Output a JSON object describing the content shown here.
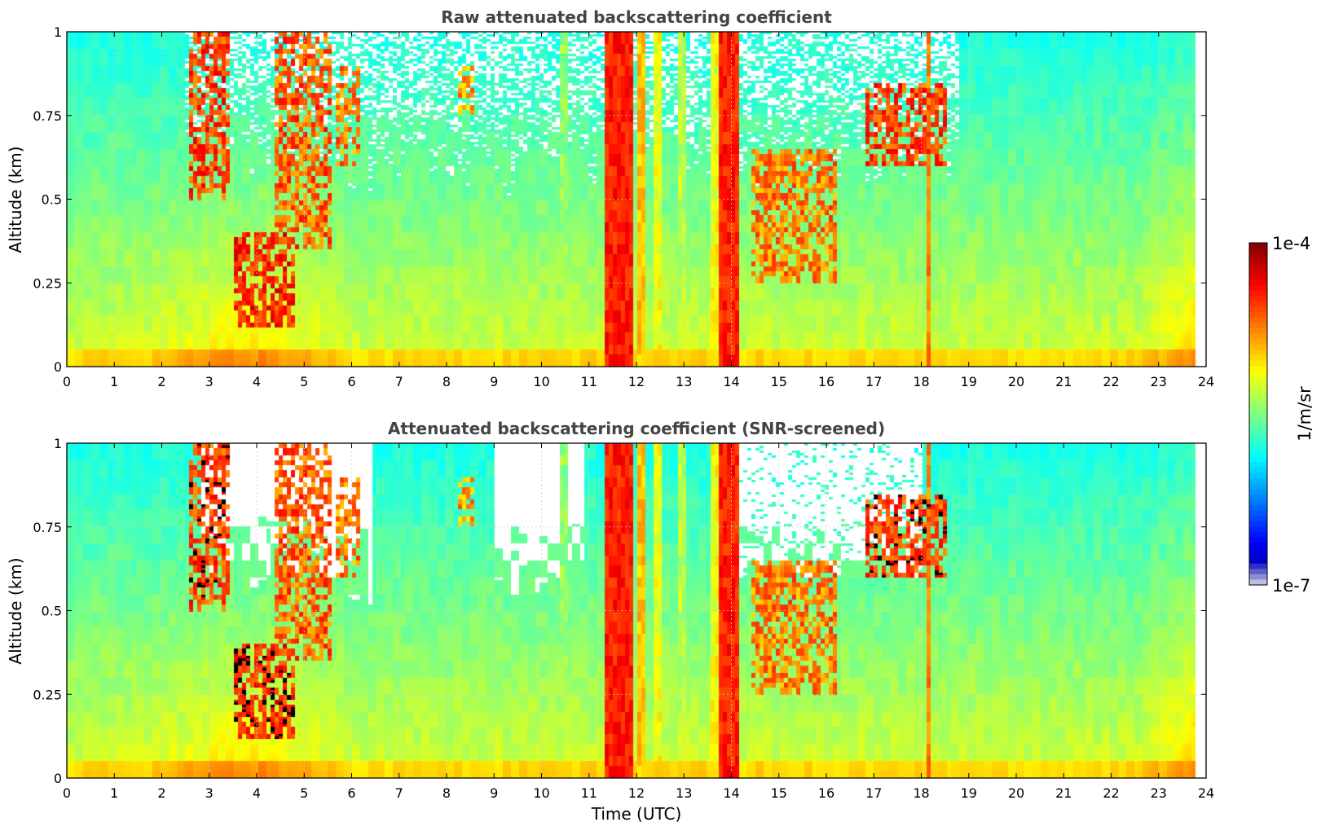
{
  "chart_data": [
    {
      "type": "heatmap",
      "title": "Raw attenuated backscattering coefficient",
      "xlabel": "",
      "ylabel": "Altitude (km)",
      "xlim": [
        0,
        24
      ],
      "ylim": [
        0,
        1
      ],
      "xticks": [
        "0",
        "1",
        "2",
        "3",
        "4",
        "5",
        "6",
        "7",
        "8",
        "9",
        "10",
        "11",
        "12",
        "13",
        "14",
        "15",
        "16",
        "17",
        "18",
        "19",
        "20",
        "21",
        "22",
        "23",
        "24"
      ],
      "yticks": [
        "0",
        "0.25",
        "0.5",
        "0.75",
        "1"
      ],
      "grid": true,
      "screened": false,
      "data_end_time": 23.8,
      "cloud_bands": [
        {
          "t_start": 2.6,
          "t_end": 3.4,
          "alt_low": 0.5,
          "alt_high": 1.0,
          "log_beta": -4.3
        },
        {
          "t_start": 3.5,
          "t_end": 4.8,
          "alt_low": 0.12,
          "alt_high": 0.4,
          "log_beta": -4.2
        },
        {
          "t_start": 4.4,
          "t_end": 5.6,
          "alt_low": 0.35,
          "alt_high": 1.0,
          "log_beta": -4.4
        },
        {
          "t_start": 5.7,
          "t_end": 6.2,
          "alt_low": 0.6,
          "alt_high": 0.9,
          "log_beta": -4.5
        },
        {
          "t_start": 8.2,
          "t_end": 8.6,
          "alt_low": 0.75,
          "alt_high": 0.9,
          "log_beta": -4.6
        },
        {
          "t_start": 14.4,
          "t_end": 16.2,
          "alt_low": 0.25,
          "alt_high": 0.65,
          "log_beta": -4.5
        },
        {
          "t_start": 16.8,
          "t_end": 18.5,
          "alt_low": 0.6,
          "alt_high": 0.85,
          "log_beta": -4.3
        }
      ],
      "rain_columns": [
        {
          "t_start": 10.4,
          "t_end": 10.6,
          "log_beta": -5.3
        },
        {
          "t_start": 11.35,
          "t_end": 11.95,
          "log_beta": -4.3
        },
        {
          "t_start": 12.0,
          "t_end": 12.2,
          "log_beta": -4.8
        },
        {
          "t_start": 12.4,
          "t_end": 12.5,
          "log_beta": -5.0
        },
        {
          "t_start": 12.85,
          "t_end": 13.05,
          "log_beta": -5.2
        },
        {
          "t_start": 13.55,
          "t_end": 13.7,
          "log_beta": -5.0
        },
        {
          "t_start": 13.75,
          "t_end": 14.2,
          "log_beta": -4.3
        },
        {
          "t_start": 18.1,
          "t_end": 18.2,
          "log_beta": -4.6
        }
      ]
    },
    {
      "type": "heatmap",
      "title": "Attenuated backscattering coefficient (SNR-screened)",
      "xlabel": "Time (UTC)",
      "ylabel": "Altitude (km)",
      "xlim": [
        0,
        24
      ],
      "ylim": [
        0,
        1
      ],
      "xticks": [
        "0",
        "1",
        "2",
        "3",
        "4",
        "5",
        "6",
        "7",
        "8",
        "9",
        "10",
        "11",
        "12",
        "13",
        "14",
        "15",
        "16",
        "17",
        "18",
        "19",
        "20",
        "21",
        "22",
        "23",
        "24"
      ],
      "yticks": [
        "0",
        "0.25",
        "0.5",
        "0.75",
        "1"
      ],
      "grid": true,
      "screened": true,
      "data_end_time": 23.8
    }
  ],
  "colorbar": {
    "min_label": "1e-7",
    "max_label": "1e-4",
    "label": "1/m/sr",
    "colormap": "jet",
    "min_log": -7,
    "max_log": -4
  },
  "colors": {
    "missing": "#ffffff",
    "saturated_screen": "#000000",
    "grid": "#cccccc",
    "title": "#444444"
  }
}
